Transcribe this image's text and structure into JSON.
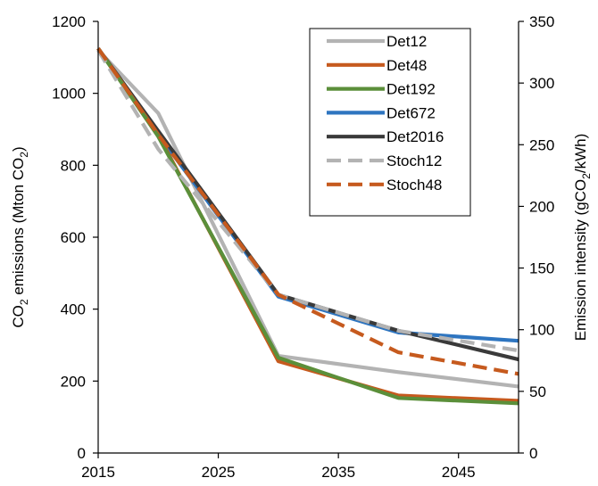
{
  "chart_data": {
    "type": "line",
    "title": "",
    "xlabel": "",
    "ylabel_left": {
      "prefix": "CO",
      "sub": "2",
      "middle": " emissions (Mton CO",
      "sub2": "2",
      "suffix": ")"
    },
    "ylabel_right": {
      "prefix": "Emission intensity (gCO",
      "sub": "2",
      "suffix": "/kWh)"
    },
    "xlim": [
      2015,
      2050
    ],
    "ylim_left": [
      0,
      1200
    ],
    "ylim_right": [
      0,
      350
    ],
    "x_ticks": [
      2015,
      2025,
      2035,
      2045
    ],
    "y_ticks_left": [
      0,
      200,
      400,
      600,
      800,
      1000,
      1200
    ],
    "y_ticks_right": [
      0,
      50,
      100,
      150,
      200,
      250,
      300,
      350
    ],
    "grid": false,
    "legend_position": "top-right",
    "x": [
      2015,
      2020,
      2030,
      2040,
      2050
    ],
    "series": [
      {
        "name": "Det12",
        "color": "#b3b3b3",
        "dash": "solid",
        "values": [
          1120,
          945,
          270,
          225,
          185
        ]
      },
      {
        "name": "Det48",
        "color": "#c65a1e",
        "dash": "solid",
        "values": [
          1125,
          885,
          255,
          160,
          145
        ]
      },
      {
        "name": "Det192",
        "color": "#5b8f3a",
        "dash": "solid",
        "values": [
          1125,
          880,
          265,
          153,
          138
        ]
      },
      {
        "name": "Det672",
        "color": "#2e75c0",
        "dash": "solid",
        "values": [
          1125,
          885,
          435,
          335,
          312
        ]
      },
      {
        "name": "Det2016",
        "color": "#3a3a3a",
        "dash": "solid",
        "values": [
          1125,
          895,
          440,
          340,
          260
        ]
      },
      {
        "name": "Stoch12",
        "color": "#b3b3b3",
        "dash": "dashed",
        "values": [
          1120,
          845,
          440,
          340,
          285
        ]
      },
      {
        "name": "Stoch48",
        "color": "#c65a1e",
        "dash": "dashed",
        "values": [
          1125,
          885,
          440,
          280,
          220
        ]
      }
    ]
  }
}
